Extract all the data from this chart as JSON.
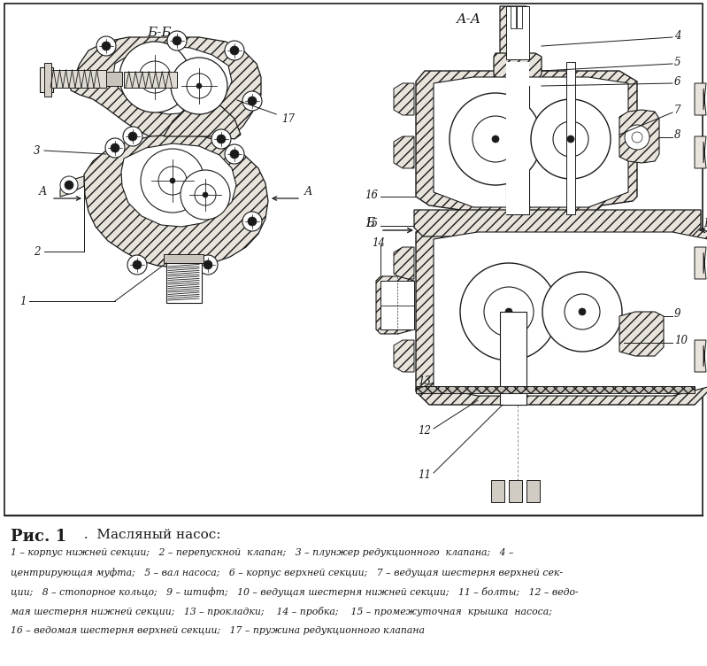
{
  "bg_color": "#ffffff",
  "paper_color": "#f8f6f0",
  "line_color": "#1a1a1a",
  "hatch_color": "#333333",
  "fill_color": "#e8e4dc",
  "fig_num": "Рис. 1",
  "fig_title": " .  Масляный насос:",
  "caption_line1": "1 – корпус нижней секции;   2 – перепускной  клапан;   3 – плунжер редукционного  клапана;   4 –",
  "caption_line2": "центрирующая муфта;   5 – вал насоса;   6 – корпус верхней секции;   7 – ведущая шестерня верхней сек-",
  "caption_line3": "ции;   8 – стопорное кольцо;   9 – штифт;   10 – ведущая шестерня нижней секции;   11 – болты;   12 – ведо-",
  "caption_line4": "мая шестерня нижней секции;   13 – прокладки;    14 – пробка;    15 – промежуточная  крышка  насоса;",
  "caption_line5": "16 – ведомая шестерня верхней секции;   17 – пружина редукционного клапана"
}
